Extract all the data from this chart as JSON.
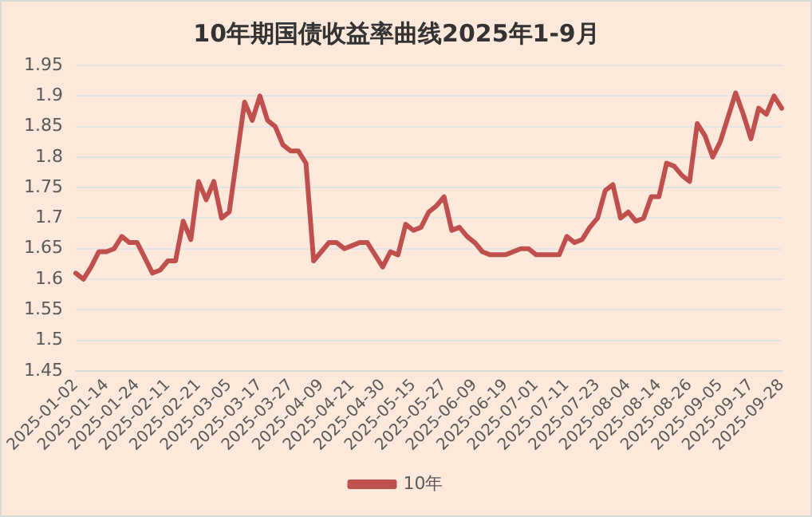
{
  "chart_data": {
    "type": "line",
    "title": "10年期国债收益率曲线2025年1-9月",
    "categories": [
      "2025-01-02",
      null,
      null,
      null,
      "2025-01-14",
      null,
      null,
      null,
      "2025-01-24",
      null,
      null,
      null,
      "2025-02-11",
      null,
      null,
      null,
      "2025-02-21",
      null,
      null,
      null,
      "2025-03-05",
      null,
      null,
      null,
      "2025-03-17",
      null,
      null,
      null,
      "2025-03-27",
      null,
      null,
      null,
      "2025-04-09",
      null,
      null,
      null,
      "2025-04-21",
      null,
      null,
      null,
      "2025-04-30",
      null,
      null,
      null,
      "2025-05-15",
      null,
      null,
      null,
      "2025-05-27",
      null,
      null,
      null,
      "2025-06-09",
      null,
      null,
      null,
      "2025-06-19",
      null,
      null,
      null,
      "2025-07-01",
      null,
      null,
      null,
      "2025-07-11",
      null,
      null,
      null,
      "2025-07-23",
      null,
      null,
      null,
      "2025-08-04",
      null,
      null,
      null,
      "2025-08-14",
      null,
      null,
      null,
      "2025-08-26",
      null,
      null,
      null,
      "2025-09-05",
      null,
      null,
      null,
      "2025-09-17",
      null,
      null,
      null,
      "2025-09-28"
    ],
    "series": [
      {
        "name": "10年",
        "color": "#c0504d",
        "values": [
          1.61,
          1.6,
          1.62,
          1.645,
          1.645,
          1.65,
          1.67,
          1.66,
          1.66,
          1.635,
          1.61,
          1.615,
          1.63,
          1.63,
          1.695,
          1.665,
          1.76,
          1.73,
          1.76,
          1.7,
          1.71,
          1.8,
          1.89,
          1.86,
          1.9,
          1.86,
          1.85,
          1.82,
          1.81,
          1.81,
          1.79,
          1.63,
          1.645,
          1.66,
          1.66,
          1.65,
          1.655,
          1.66,
          1.66,
          1.64,
          1.62,
          1.645,
          1.64,
          1.69,
          1.68,
          1.685,
          1.71,
          1.72,
          1.735,
          1.68,
          1.685,
          1.67,
          1.66,
          1.645,
          1.64,
          1.64,
          1.64,
          1.645,
          1.65,
          1.65,
          1.64,
          1.64,
          1.64,
          1.64,
          1.67,
          1.66,
          1.665,
          1.685,
          1.7,
          1.745,
          1.755,
          1.7,
          1.71,
          1.695,
          1.7,
          1.735,
          1.735,
          1.79,
          1.785,
          1.77,
          1.76,
          1.855,
          1.835,
          1.8,
          1.825,
          1.865,
          1.905,
          1.87,
          1.83,
          1.88,
          1.87,
          1.9,
          1.88
        ]
      }
    ],
    "ylim": [
      1.45,
      1.95
    ],
    "yticks": [
      1.45,
      1.5,
      1.55,
      1.6,
      1.65,
      1.7,
      1.75,
      1.8,
      1.85,
      1.9,
      1.95
    ],
    "grid": "y",
    "legend": "bottom",
    "marker": "none",
    "line_style": "solid"
  }
}
